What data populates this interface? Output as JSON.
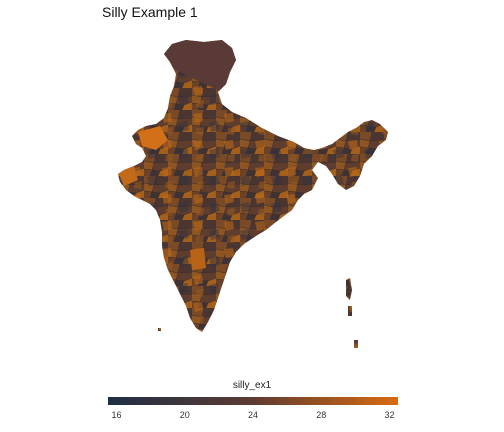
{
  "title": "Silly Example 1",
  "map": {
    "region": "India",
    "fill_variable": "silly_ex1",
    "value_range": [
      16,
      33
    ]
  },
  "legend": {
    "title": "silly_ex1",
    "position": "bottom",
    "ticks": [
      "16",
      "20",
      "24",
      "28",
      "32"
    ],
    "tick_values": [
      16,
      20,
      24,
      28,
      32
    ],
    "min": 15.5,
    "max": 32.5,
    "colors": {
      "low": "#1e2f45",
      "mid": "#5e3b32",
      "high": "#d96b10"
    }
  }
}
